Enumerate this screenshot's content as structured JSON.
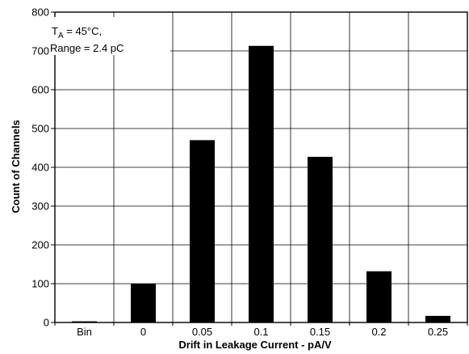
{
  "chart_data": {
    "type": "bar",
    "categories": [
      "Bin",
      "0",
      "0.05",
      "0.1",
      "0.15",
      "0.2",
      "0.25"
    ],
    "values": [
      3,
      100,
      470,
      713,
      427,
      132,
      17
    ],
    "xlabel": "Drift in Leakage Current - pA/V",
    "ylabel": "Count of Channels",
    "ylim": [
      0,
      800
    ],
    "yticks": [
      0,
      100,
      200,
      300,
      400,
      500,
      600,
      700,
      800
    ],
    "grid": true,
    "bar_color": "#000000",
    "annotation": {
      "line1_prefix": "T",
      "line1_subscript": "A",
      "line1_suffix": " = 45°C,",
      "line2": "Range = 2.4 pC"
    }
  }
}
